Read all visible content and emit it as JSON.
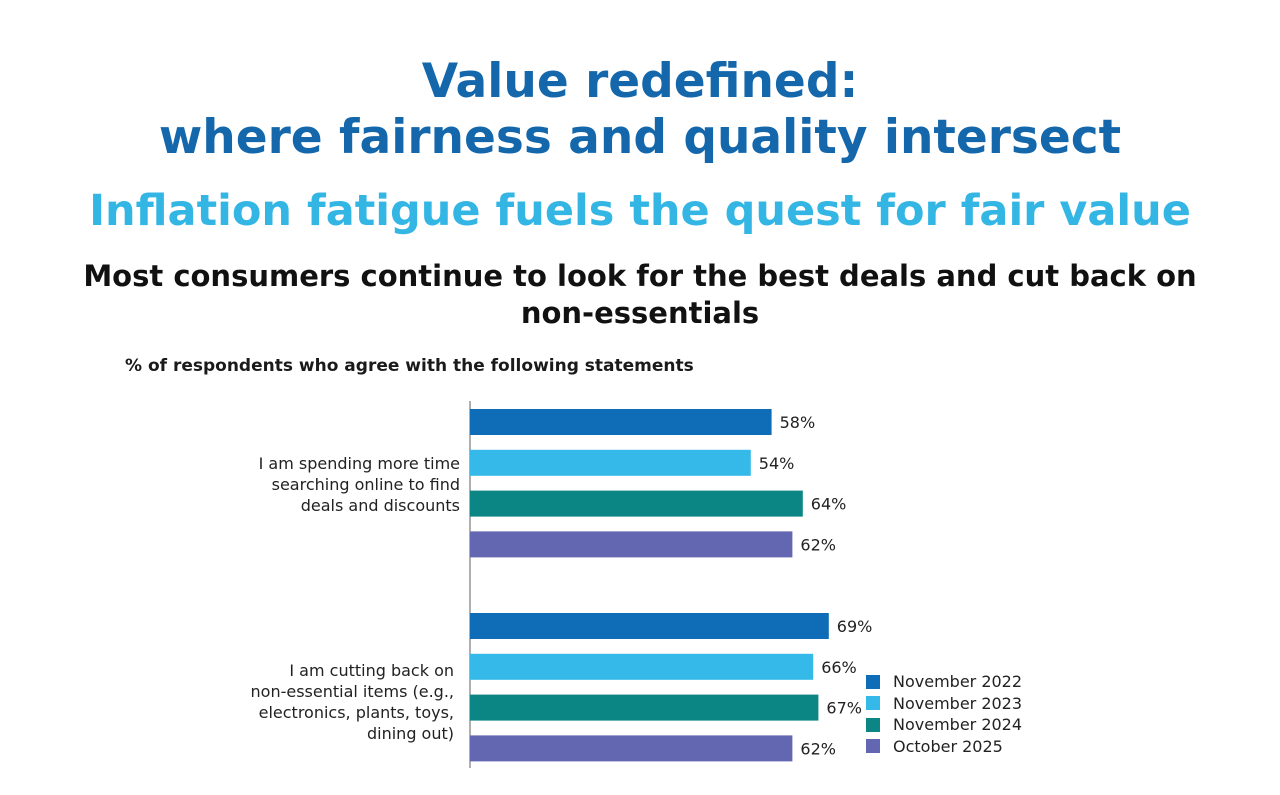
{
  "header": {
    "title_line1": "Value redefined:",
    "title_line2": "where fairness and quality intersect",
    "subtitle": "Inflation fatigue fuels the quest for fair value",
    "heading_line1": "Most consumers continue to look for the best deals and cut back on",
    "heading_line2": "non-essentials"
  },
  "chart_data": {
    "type": "bar",
    "orientation": "horizontal",
    "ylabel": "% of respondents who agree with the following statements",
    "categories": [
      [
        "I am spending more time",
        "searching online to find",
        "deals and discounts"
      ],
      [
        "I am cutting back on",
        "non-essential items (e.g.,",
        "electronics, plants, toys,",
        "dining out)"
      ]
    ],
    "series": [
      {
        "name": "November 2022",
        "color": "#0f6db7",
        "values": [
          58,
          69
        ],
        "labels": [
          "58%",
          "69%"
        ]
      },
      {
        "name": "November 2023",
        "color": "#35b9e8",
        "values": [
          54,
          66
        ],
        "labels": [
          "54%",
          "66%"
        ]
      },
      {
        "name": "November 2024",
        "color": "#0c8585",
        "values": [
          64,
          67
        ],
        "labels": [
          "64%",
          "67%"
        ]
      },
      {
        "name": "October 2025",
        "color": "#6366b1",
        "values": [
          62,
          62
        ],
        "labels": [
          "62%",
          "62%"
        ]
      }
    ],
    "xlim": [
      0,
      100
    ],
    "grid": false,
    "legend_position": "bottom-right"
  }
}
